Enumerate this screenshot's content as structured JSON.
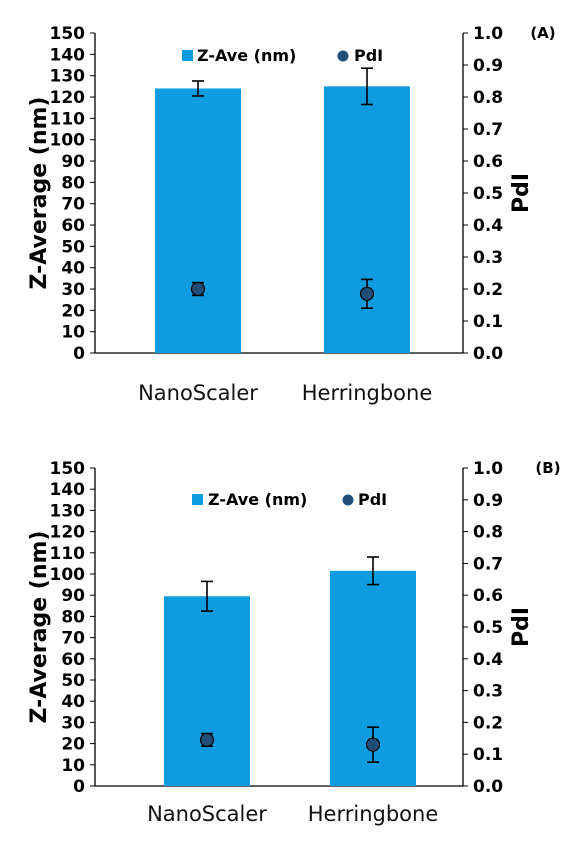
{
  "chart_data": [
    {
      "panel_label": "(A)",
      "type": "bar",
      "categories": [
        "NanoScaler",
        "Herringbone"
      ],
      "ylabel": "Z-Average (nm)",
      "y2label": "PdI",
      "ylim": [
        0,
        150
      ],
      "y2lim": [
        0,
        1.0
      ],
      "y_ticks": [
        "0",
        "10",
        "20",
        "30",
        "40",
        "50",
        "60",
        "70",
        "80",
        "90",
        "100",
        "110",
        "120",
        "130",
        "140",
        "150"
      ],
      "y2_ticks": [
        "0.0",
        "0.1",
        "0.2",
        "0.3",
        "0.4",
        "0.5",
        "0.6",
        "0.7",
        "0.8",
        "0.9",
        "1.0"
      ],
      "legend": [
        "Z-Ave (nm)",
        "PdI"
      ],
      "legend_position": "top",
      "grid": false,
      "series": [
        {
          "name": "Z-Ave (nm)",
          "type": "bar",
          "axis": "left",
          "values": [
            124,
            125
          ],
          "errors": [
            3.5,
            8.5
          ],
          "color": "#0f9be0"
        },
        {
          "name": "PdI",
          "type": "scatter",
          "axis": "right",
          "values": [
            0.2,
            0.185
          ],
          "errors": [
            0.02,
            0.045
          ],
          "color": "#1f4e79"
        }
      ]
    },
    {
      "panel_label": "(B)",
      "type": "bar",
      "categories": [
        "NanoScaler",
        "Herringbone"
      ],
      "ylabel": "Z-Average (nm)",
      "y2label": "PdI",
      "ylim": [
        0,
        150
      ],
      "y2lim": [
        0,
        1.0
      ],
      "y_ticks": [
        "0",
        "10",
        "20",
        "30",
        "40",
        "50",
        "60",
        "70",
        "80",
        "90",
        "100",
        "110",
        "120",
        "130",
        "140",
        "150"
      ],
      "y2_ticks": [
        "0.0",
        "0.1",
        "0.2",
        "0.3",
        "0.4",
        "0.5",
        "0.6",
        "0.7",
        "0.8",
        "0.9",
        "1.0"
      ],
      "legend": [
        "Z-Ave (nm)",
        "PdI"
      ],
      "legend_position": "top",
      "grid": false,
      "series": [
        {
          "name": "Z-Ave (nm)",
          "type": "bar",
          "axis": "left",
          "values": [
            89.5,
            101.5
          ],
          "errors": [
            7,
            6.5
          ],
          "color": "#0f9be0"
        },
        {
          "name": "PdI",
          "type": "scatter",
          "axis": "right",
          "values": [
            0.145,
            0.13
          ],
          "errors": [
            0.02,
            0.055
          ],
          "color": "#1f4e79"
        }
      ]
    }
  ]
}
